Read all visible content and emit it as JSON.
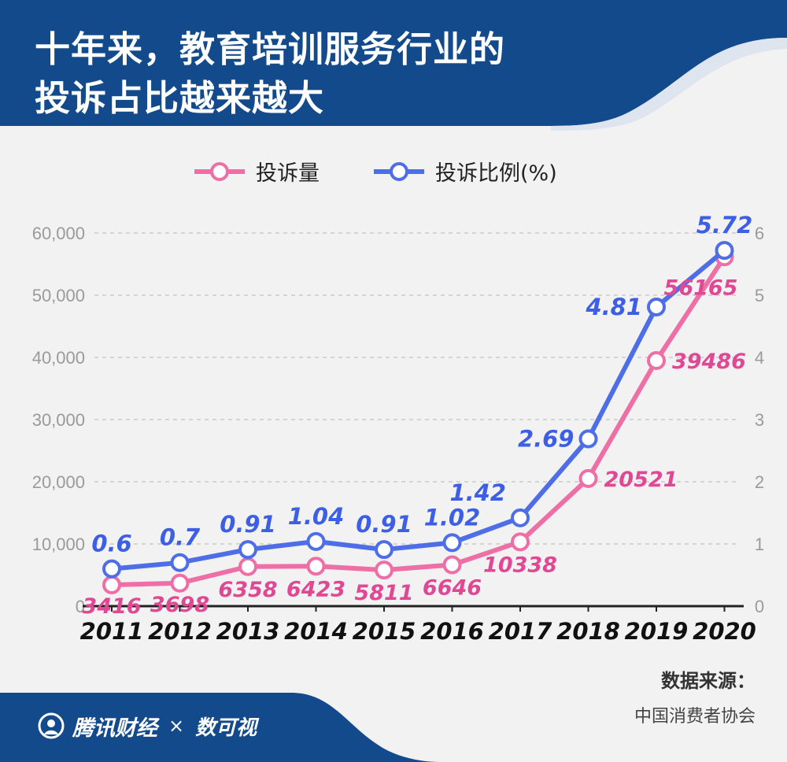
{
  "header": {
    "title_line1": "十年来，教育培训服务行业的",
    "title_line2": "投诉占比越来越大"
  },
  "colors": {
    "header_bg": "#124a8c",
    "count_line": "#ee6fa5",
    "count_label": "#e04893",
    "ratio_line": "#4e6ee8",
    "ratio_label": "#3c5fe6",
    "background": "#f2f2f2"
  },
  "chart_data": {
    "type": "line",
    "categories": [
      "2011",
      "2012",
      "2013",
      "2014",
      "2015",
      "2016",
      "2017",
      "2018",
      "2019",
      "2020"
    ],
    "series": [
      {
        "name": "投诉量",
        "axis": "left",
        "values": [
          3416,
          3698,
          6358,
          6423,
          5811,
          6646,
          10338,
          20521,
          39486,
          56165
        ],
        "labels": [
          "3416",
          "3698",
          "6358",
          "6423",
          "5811",
          "6646",
          "10338",
          "20521",
          "39486",
          "56165"
        ]
      },
      {
        "name": "投诉比例(%)",
        "axis": "right",
        "values": [
          0.6,
          0.7,
          0.91,
          1.04,
          0.91,
          1.02,
          1.42,
          2.69,
          4.81,
          5.72
        ],
        "labels": [
          "0.6",
          "0.7",
          "0.91",
          "1.04",
          "0.91",
          "1.02",
          "1.42",
          "2.69",
          "4.81",
          "5.72"
        ]
      }
    ],
    "y_left": {
      "ylim": [
        0,
        60000
      ],
      "ticks": [
        "0",
        "10,000",
        "20,000",
        "30,000",
        "40,000",
        "50,000",
        "60,000"
      ]
    },
    "y_right": {
      "ylim": [
        0,
        6
      ],
      "ticks": [
        "0",
        "1",
        "2",
        "3",
        "4",
        "5",
        "6"
      ]
    },
    "grid": "horizontal dashed",
    "legend_position": "top"
  },
  "source": {
    "label": "数据来源：",
    "value": "中国消费者协会"
  },
  "footer": {
    "brand": "腾讯财经",
    "separator": "×",
    "partner": "数可视"
  }
}
